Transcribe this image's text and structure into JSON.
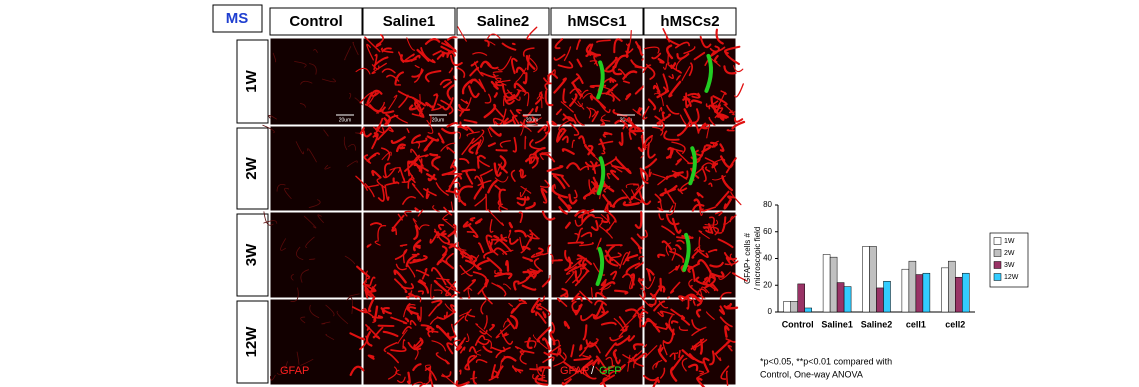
{
  "figure": {
    "label": "MS",
    "columns": [
      "Control",
      "Saline1",
      "Saline2",
      "hMSCs1",
      "hMSCs2"
    ],
    "rows": [
      "1W",
      "2W",
      "3W",
      "12W"
    ],
    "scale_bar": "20um",
    "stain_red": "GFAP",
    "stain_sep": "/",
    "stain_green": "GFP",
    "footnote": [
      "*p<0.05, **p<0.01 compared with",
      "Control, One-way ANOVA"
    ]
  },
  "chart_data": {
    "type": "bar",
    "ylabel": [
      "GFAP+ cells #",
      "/ microscopic field"
    ],
    "categories": [
      "Control",
      "Saline1",
      "Saline2",
      "cell1",
      "cell2"
    ],
    "series": [
      {
        "name": "1W",
        "color": "#ffffff",
        "values": [
          8,
          43,
          49,
          32,
          33
        ]
      },
      {
        "name": "2W",
        "color": "#c0c0c0",
        "values": [
          8,
          41,
          49,
          38,
          38
        ]
      },
      {
        "name": "3W",
        "color": "#993366",
        "values": [
          21,
          22,
          18,
          28,
          26
        ]
      },
      {
        "name": "12W",
        "color": "#33ccff",
        "values": [
          3,
          19,
          23,
          29,
          29
        ]
      }
    ],
    "ylim": [
      0,
      80
    ],
    "yticks": [
      0,
      20,
      40,
      60,
      80
    ],
    "legend": "right"
  }
}
